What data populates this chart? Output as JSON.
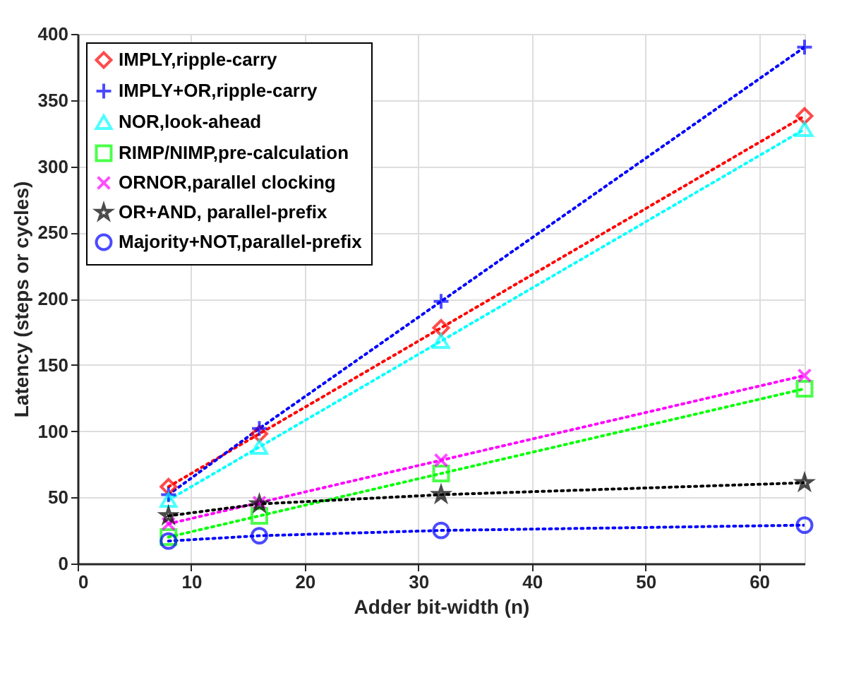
{
  "chart_data": {
    "type": "line",
    "xlabel": "Adder bit-width (n)",
    "ylabel": "Latency (steps or cycles)",
    "x": [
      8,
      16,
      32,
      64
    ],
    "xlim": [
      0,
      64
    ],
    "xticks": [
      0,
      10,
      20,
      30,
      40,
      50,
      60
    ],
    "ylim": [
      0,
      400
    ],
    "yticks": [
      0,
      50,
      100,
      150,
      200,
      250,
      300,
      350,
      400
    ],
    "grid": true,
    "legend": "top left",
    "line_style": "dotted",
    "series": [
      {
        "name": "IMPLY,ripple-carry",
        "color": "#ff0000",
        "marker": "diamond",
        "values": [
          58,
          98,
          178,
          338
        ]
      },
      {
        "name": "IMPLY+OR,ripple-carry",
        "color": "#0000ff",
        "marker": "cross",
        "values": [
          52,
          102,
          198,
          390
        ]
      },
      {
        "name": "NOR,look-ahead",
        "color": "#00ffff",
        "marker": "triangle",
        "values": [
          48,
          88,
          168,
          328
        ]
      },
      {
        "name": "RIMP/NIMP,pre-calculation",
        "color": "#00ff00",
        "marker": "square",
        "values": [
          20,
          36,
          68,
          132
        ]
      },
      {
        "name": "ORNOR,parallel clocking",
        "color": "#ff00ff",
        "marker": "x",
        "values": [
          30,
          46,
          78,
          142
        ]
      },
      {
        "name": "OR+AND, parallel-prefix",
        "color": "#000000",
        "marker": "star",
        "values": [
          36,
          45,
          52,
          61
        ]
      },
      {
        "name": "Majority+NOT,parallel-prefix",
        "color": "#0000ff",
        "marker": "circle",
        "values": [
          17,
          21,
          25,
          29
        ]
      }
    ]
  }
}
